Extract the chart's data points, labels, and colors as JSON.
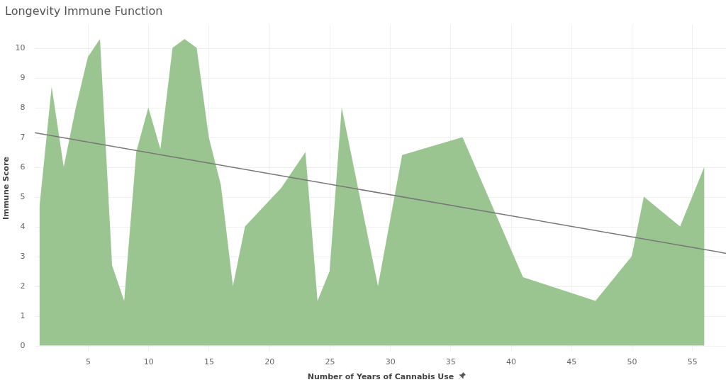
{
  "chart_data": {
    "type": "area",
    "title": "Longevity Immune Function",
    "xlabel": "Number of Years of Cannabis Use",
    "ylabel": "Immune Score",
    "xlim": [
      0.6,
      57.8
    ],
    "ylim": [
      -0.2,
      10.8
    ],
    "xticks": [
      5,
      10,
      15,
      20,
      25,
      30,
      35,
      40,
      45,
      50,
      55
    ],
    "yticks": [
      0,
      1,
      2,
      3,
      4,
      5,
      6,
      7,
      8,
      9,
      10
    ],
    "grid": true,
    "series": [
      {
        "color": "#9bc590",
        "x": [
          1,
          2,
          3,
          4,
          5,
          6,
          7,
          8,
          9,
          10,
          11,
          12,
          13,
          14,
          15,
          16,
          17,
          18,
          21,
          23,
          24,
          25,
          26,
          29,
          31,
          36,
          41,
          47,
          50,
          51,
          54,
          56
        ],
        "values": [
          4.7,
          8.7,
          6.0,
          8.0,
          9.7,
          10.3,
          2.7,
          1.5,
          6.5,
          8.0,
          6.6,
          10.0,
          10.3,
          10.0,
          7.0,
          5.4,
          2.0,
          4.0,
          5.3,
          6.5,
          1.5,
          2.5,
          8.0,
          2.0,
          6.4,
          7.0,
          2.3,
          1.5,
          3.0,
          5.0,
          4.0,
          6.0
        ]
      },
      {
        "type": "line",
        "color": "#777777",
        "x": [
          0.6,
          57.8
        ],
        "values": [
          7.15,
          3.1
        ]
      }
    ]
  }
}
